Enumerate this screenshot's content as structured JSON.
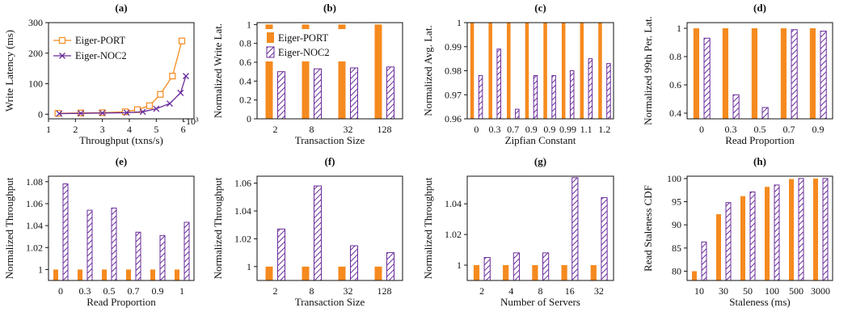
{
  "colors": {
    "port": "#f58a1f",
    "noc": "#6a2c9a"
  },
  "legend": {
    "port": "Eiger-PORT",
    "noc": "Eiger-NOC2"
  },
  "chart_data": [
    {
      "id": "a",
      "type": "line",
      "title": "(a)",
      "xlabel": "Throughput (txns/s)",
      "ylabel": "Write Latency (ms)",
      "x_exponent": "·10³",
      "xlim": [
        1,
        6.4
      ],
      "ylim": [
        -15,
        300
      ],
      "xticks": [
        1,
        2,
        3,
        4,
        5,
        6
      ],
      "yticks": [
        0,
        100,
        200,
        300
      ],
      "legend_position": "top-left",
      "series": [
        {
          "name": "Eiger-PORT",
          "color": "port",
          "marker": "square",
          "x": [
            1.35,
            2.2,
            3.0,
            3.85,
            4.3,
            4.75,
            5.15,
            5.6,
            5.95
          ],
          "y": [
            3,
            4,
            5,
            8,
            15,
            28,
            65,
            125,
            240
          ]
        },
        {
          "name": "Eiger-NOC2",
          "color": "noc",
          "marker": "x",
          "x": [
            1.4,
            2.2,
            3.0,
            3.9,
            4.5,
            5.0,
            5.5,
            5.9,
            6.1
          ],
          "y": [
            2,
            3,
            4,
            5,
            8,
            18,
            35,
            70,
            125
          ]
        }
      ]
    },
    {
      "id": "b",
      "type": "bar",
      "title": "(b)",
      "xlabel": "Transaction Size",
      "ylabel": "Normalized Write Lat.",
      "categories": [
        "2",
        "8",
        "32",
        "128"
      ],
      "ylim": [
        0,
        1.02
      ],
      "yticks": [
        0,
        0.2,
        0.4,
        0.6,
        0.8,
        1
      ],
      "ytick_labels": [
        "0",
        "0.2",
        "0.4",
        "0.6",
        "0.8",
        "1"
      ],
      "legend_position": "top-left",
      "series": [
        {
          "name": "Eiger-PORT",
          "color": "port",
          "values": [
            1,
            1,
            1,
            1
          ]
        },
        {
          "name": "Eiger-NOC2",
          "color": "noc",
          "values": [
            0.5,
            0.53,
            0.54,
            0.55
          ]
        }
      ]
    },
    {
      "id": "c",
      "type": "bar",
      "title": "(c)",
      "xlabel": "Zipfian Constant",
      "ylabel": "Normalized Avg. Lat.",
      "categories": [
        "0",
        "0.3",
        "0.7",
        "0.9",
        "0.9",
        "0.99",
        "1.1",
        "1.2"
      ],
      "ylim": [
        0.96,
        1.0
      ],
      "yticks": [
        0.96,
        0.97,
        0.98,
        0.99,
        1
      ],
      "ytick_labels": [
        "0.96",
        "0.97",
        "0.98",
        "0.99",
        "1"
      ],
      "series": [
        {
          "name": "Eiger-PORT",
          "color": "port",
          "values": [
            1,
            1,
            1,
            1,
            1,
            1,
            1,
            1
          ]
        },
        {
          "name": "Eiger-NOC2",
          "color": "noc",
          "values": [
            0.978,
            0.989,
            0.964,
            0.978,
            0.978,
            0.98,
            0.985,
            0.983
          ]
        }
      ]
    },
    {
      "id": "d",
      "type": "bar",
      "title": "(d)",
      "xlabel": "Read Proportion",
      "ylabel": "Normalized 99th Per. Lat.",
      "categories": [
        "0",
        "0.3",
        "0.5",
        "0.7",
        "0.9"
      ],
      "ylim": [
        0.36,
        1.04
      ],
      "yticks": [
        0.4,
        0.6,
        0.8,
        1
      ],
      "ytick_labels": [
        "0.4",
        "0.6",
        "0.8",
        "1"
      ],
      "series": [
        {
          "name": "Eiger-PORT",
          "color": "port",
          "values": [
            1,
            1,
            1,
            1,
            1
          ]
        },
        {
          "name": "Eiger-NOC2",
          "color": "noc",
          "values": [
            0.93,
            0.53,
            0.44,
            0.99,
            0.98
          ]
        }
      ]
    },
    {
      "id": "e",
      "type": "bar",
      "title": "(e)",
      "xlabel": "Read Proportion",
      "ylabel": "Normalized Throughput",
      "categories": [
        "0",
        "0.3",
        "0.5",
        "0.7",
        "0.9",
        "1"
      ],
      "ylim": [
        0.99,
        1.085
      ],
      "yticks": [
        1,
        1.02,
        1.04,
        1.06,
        1.08
      ],
      "ytick_labels": [
        "1",
        "1.02",
        "1.04",
        "1.06",
        "1.08"
      ],
      "series": [
        {
          "name": "Eiger-PORT",
          "color": "port",
          "values": [
            1,
            1,
            1,
            1,
            1,
            1
          ]
        },
        {
          "name": "Eiger-NOC2",
          "color": "noc",
          "values": [
            1.078,
            1.054,
            1.056,
            1.034,
            1.031,
            1.043
          ]
        }
      ]
    },
    {
      "id": "f",
      "type": "bar",
      "title": "(f)",
      "xlabel": "Transaction Size",
      "ylabel": "Normalized Throughput",
      "categories": [
        "2",
        "8",
        "32",
        "128"
      ],
      "ylim": [
        0.99,
        1.065
      ],
      "yticks": [
        1,
        1.02,
        1.04,
        1.06
      ],
      "ytick_labels": [
        "1",
        "1.02",
        "1.04",
        "1.06"
      ],
      "series": [
        {
          "name": "Eiger-PORT",
          "color": "port",
          "values": [
            1,
            1,
            1,
            1
          ]
        },
        {
          "name": "Eiger-NOC2",
          "color": "noc",
          "values": [
            1.027,
            1.058,
            1.015,
            1.01
          ]
        }
      ]
    },
    {
      "id": "g",
      "type": "bar",
      "title": "(g)",
      "xlabel": "Number of Servers",
      "ylabel": "Normalized Throughput",
      "categories": [
        "2",
        "4",
        "8",
        "16",
        "32"
      ],
      "ylim": [
        0.99,
        1.058
      ],
      "yticks": [
        1,
        1.02,
        1.04
      ],
      "ytick_labels": [
        "1",
        "1.02",
        "1.04"
      ],
      "series": [
        {
          "name": "Eiger-PORT",
          "color": "port",
          "values": [
            1,
            1,
            1,
            1,
            1
          ]
        },
        {
          "name": "Eiger-NOC2",
          "color": "noc",
          "values": [
            1.005,
            1.008,
            1.008,
            1.057,
            1.044
          ]
        }
      ]
    },
    {
      "id": "h",
      "type": "bar",
      "title": "(h)",
      "xlabel": "Staleness (ms)",
      "ylabel": "Read Staleness CDF",
      "categories": [
        "10",
        "30",
        "50",
        "100",
        "500",
        "3000"
      ],
      "ylim": [
        78,
        100.5
      ],
      "yticks": [
        80,
        85,
        90,
        95,
        100
      ],
      "ytick_labels": [
        "80",
        "85",
        "90",
        "95",
        "100"
      ],
      "series": [
        {
          "name": "Eiger-PORT",
          "color": "port",
          "values": [
            80,
            92.3,
            96.2,
            98.2,
            99.9,
            100
          ]
        },
        {
          "name": "Eiger-NOC2",
          "color": "noc",
          "values": [
            86.3,
            94.8,
            97.1,
            98.6,
            100,
            100
          ]
        }
      ]
    }
  ]
}
